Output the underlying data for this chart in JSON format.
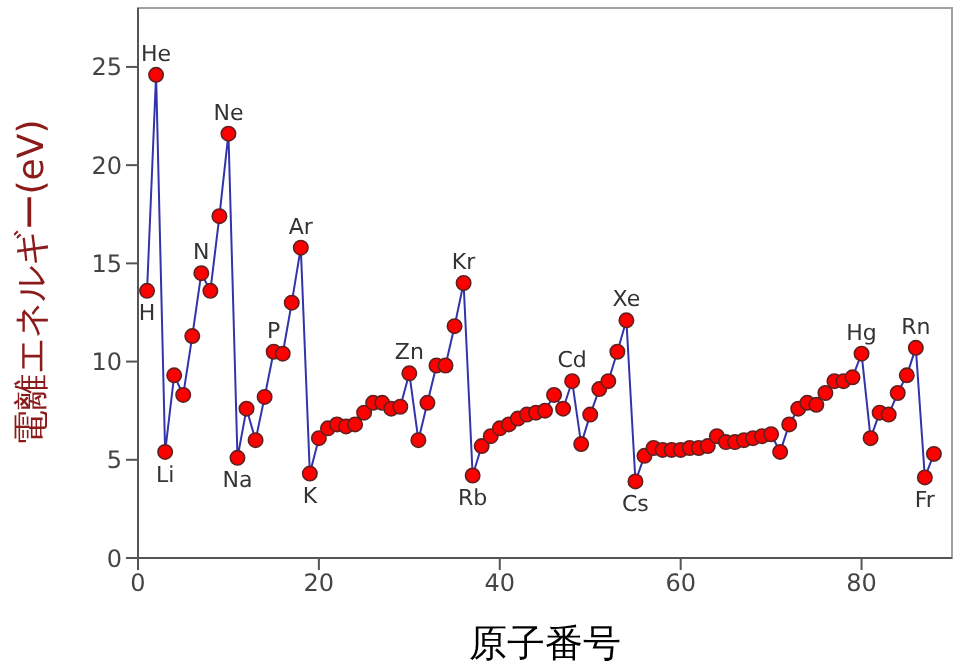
{
  "chart_data": {
    "type": "line",
    "xlabel": "原子番号",
    "ylabel": "電離エネルギー(eV)",
    "x": [
      1,
      2,
      3,
      4,
      5,
      6,
      7,
      8,
      9,
      10,
      11,
      12,
      13,
      14,
      15,
      16,
      17,
      18,
      19,
      20,
      21,
      22,
      23,
      24,
      25,
      26,
      27,
      28,
      29,
      30,
      31,
      32,
      33,
      34,
      35,
      36,
      37,
      38,
      39,
      40,
      41,
      42,
      43,
      44,
      45,
      46,
      47,
      48,
      49,
      50,
      51,
      52,
      53,
      54,
      55,
      56,
      57,
      58,
      59,
      60,
      61,
      62,
      63,
      64,
      65,
      66,
      67,
      68,
      69,
      70,
      71,
      72,
      73,
      74,
      75,
      76,
      77,
      78,
      79,
      80,
      81,
      82,
      83,
      84,
      85,
      86,
      87,
      88
    ],
    "series": [
      {
        "color": "#3333aa",
        "values": [
          13.6,
          24.6,
          5.4,
          9.3,
          8.3,
          11.3,
          14.5,
          13.6,
          17.4,
          21.6,
          5.1,
          7.6,
          6.0,
          8.2,
          10.5,
          10.4,
          13.0,
          15.8,
          4.3,
          6.1,
          6.6,
          6.8,
          6.7,
          6.8,
          7.4,
          7.9,
          7.9,
          7.6,
          7.7,
          9.4,
          6.0,
          7.9,
          9.8,
          9.8,
          11.8,
          14.0,
          4.2,
          5.7,
          6.2,
          6.6,
          6.8,
          7.1,
          7.3,
          7.4,
          7.5,
          8.3,
          7.6,
          9.0,
          5.8,
          7.3,
          8.6,
          9.0,
          10.5,
          12.1,
          3.9,
          5.2,
          5.6,
          5.5,
          5.5,
          5.5,
          5.6,
          5.6,
          5.7,
          6.2,
          5.9,
          5.9,
          6.0,
          6.1,
          6.2,
          6.3,
          5.4,
          6.8,
          7.6,
          7.9,
          7.8,
          8.4,
          9.0,
          9.0,
          9.2,
          10.4,
          6.1,
          7.4,
          7.3,
          8.4,
          9.3,
          10.7,
          4.1,
          5.3
        ]
      }
    ],
    "marker": "circle",
    "grid": false,
    "legend": false,
    "xlim": [
      0,
      90
    ],
    "xticks": [
      0,
      20,
      40,
      60,
      80
    ],
    "ylim": [
      0,
      28
    ],
    "yticks": [
      0,
      5,
      10,
      15,
      20,
      25
    ],
    "annotations": [
      {
        "text": "H",
        "x": 1,
        "y": 13.6
      },
      {
        "text": "He",
        "x": 2,
        "y": 24.6
      },
      {
        "text": "Li",
        "x": 3,
        "y": 5.4
      },
      {
        "text": "N",
        "x": 7,
        "y": 14.5
      },
      {
        "text": "Ne",
        "x": 10,
        "y": 21.6
      },
      {
        "text": "Na",
        "x": 11,
        "y": 5.1
      },
      {
        "text": "P",
        "x": 15,
        "y": 10.5
      },
      {
        "text": "Ar",
        "x": 18,
        "y": 15.8
      },
      {
        "text": "K",
        "x": 19,
        "y": 4.3
      },
      {
        "text": "Zn",
        "x": 30,
        "y": 9.4
      },
      {
        "text": "Kr",
        "x": 36,
        "y": 14.0
      },
      {
        "text": "Rb",
        "x": 37,
        "y": 4.2
      },
      {
        "text": "Cd",
        "x": 48,
        "y": 9.0
      },
      {
        "text": "Xe",
        "x": 54,
        "y": 12.1
      },
      {
        "text": "Cs",
        "x": 55,
        "y": 3.9
      },
      {
        "text": "Hg",
        "x": 80,
        "y": 10.4
      },
      {
        "text": "Rn",
        "x": 86,
        "y": 10.7
      },
      {
        "text": "Fr",
        "x": 87,
        "y": 4.1
      }
    ]
  }
}
